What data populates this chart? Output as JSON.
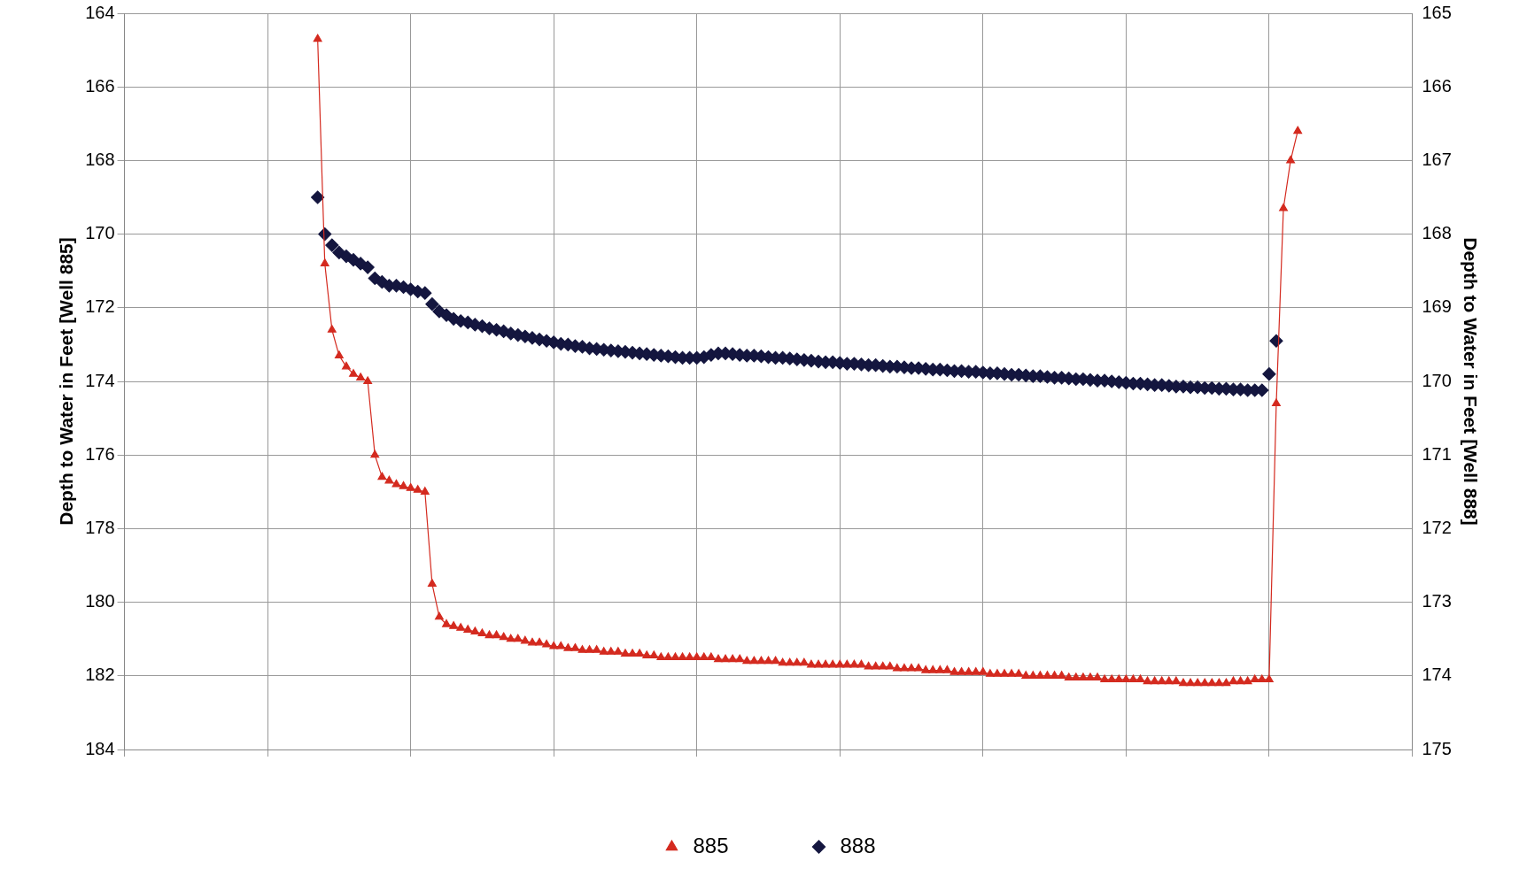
{
  "chart_data": {
    "type": "line",
    "ylabel": "Depth to Water in Feet [Well 885]",
    "y2label": "Depth to Water in Feet [Well 888]",
    "categories": [
      null,
      null,
      null,
      null,
      null,
      null,
      null,
      null,
      null,
      null,
      null,
      null,
      null,
      null,
      null,
      null,
      null,
      null,
      null,
      null,
      null,
      null,
      null,
      null,
      null,
      null,
      null,
      null,
      null,
      null,
      null,
      null,
      null,
      null,
      null,
      null,
      null,
      null,
      null,
      null,
      null,
      null,
      null,
      null,
      null,
      null,
      null,
      null,
      null,
      null,
      null,
      null,
      null,
      null,
      null,
      null,
      null,
      null,
      null,
      null,
      null,
      null,
      null,
      null,
      null,
      null,
      null,
      null,
      null,
      null,
      null,
      null,
      null,
      null,
      null,
      null,
      null,
      null,
      null,
      null,
      null,
      null,
      null,
      null,
      null,
      null,
      null,
      null,
      null,
      null,
      null,
      null,
      null,
      null,
      null,
      null,
      null,
      null,
      null,
      null,
      null,
      null,
      null,
      null,
      null,
      null,
      null,
      null,
      null,
      null,
      null,
      null,
      null,
      null,
      null,
      null,
      null,
      null,
      null,
      null,
      null,
      null,
      null,
      null,
      null,
      null,
      null,
      null,
      null,
      null,
      null,
      null,
      null,
      null,
      null,
      null,
      null,
      null,
      null,
      null,
      null,
      null,
      null,
      null,
      null,
      null,
      null,
      null,
      null,
      null,
      null,
      null,
      null,
      null,
      null,
      null,
      null,
      null,
      null,
      null,
      null,
      null,
      null,
      null,
      null,
      null,
      null,
      null,
      null,
      null,
      null,
      null,
      null,
      null,
      null,
      null,
      null,
      null,
      null,
      null,
      null
    ],
    "series": [
      {
        "name": "885",
        "type": "line",
        "marker": "triangle",
        "line_style": "solid",
        "color": "#d42a1f",
        "values": [
          null,
          null,
          null,
          null,
          null,
          null,
          null,
          null,
          null,
          null,
          null,
          null,
          null,
          null,
          null,
          null,
          null,
          null,
          null,
          null,
          null,
          null,
          null,
          null,
          null,
          null,
          null,
          164.7,
          170.8,
          172.6,
          173.3,
          173.6,
          173.8,
          173.9,
          174.0,
          176.0,
          176.6,
          176.7,
          176.8,
          176.85,
          176.9,
          176.95,
          177.0,
          179.5,
          180.4,
          180.6,
          180.65,
          180.7,
          180.75,
          180.8,
          180.85,
          180.9,
          180.9,
          180.95,
          181.0,
          181.0,
          181.05,
          181.1,
          181.1,
          181.15,
          181.2,
          181.2,
          181.25,
          181.25,
          181.3,
          181.3,
          181.3,
          181.35,
          181.35,
          181.35,
          181.4,
          181.4,
          181.4,
          181.45,
          181.45,
          181.5,
          181.5,
          181.5,
          181.5,
          181.5,
          181.5,
          181.5,
          181.5,
          181.55,
          181.55,
          181.55,
          181.55,
          181.6,
          181.6,
          181.6,
          181.6,
          181.6,
          181.65,
          181.65,
          181.65,
          181.65,
          181.7,
          181.7,
          181.7,
          181.7,
          181.7,
          181.7,
          181.7,
          181.7,
          181.75,
          181.75,
          181.75,
          181.75,
          181.8,
          181.8,
          181.8,
          181.8,
          181.85,
          181.85,
          181.85,
          181.85,
          181.9,
          181.9,
          181.9,
          181.9,
          181.9,
          181.95,
          181.95,
          181.95,
          181.95,
          181.95,
          182.0,
          182.0,
          182.0,
          182.0,
          182.0,
          182.0,
          182.05,
          182.05,
          182.05,
          182.05,
          182.05,
          182.1,
          182.1,
          182.1,
          182.1,
          182.1,
          182.1,
          182.15,
          182.15,
          182.15,
          182.15,
          182.15,
          182.2,
          182.2,
          182.2,
          182.2,
          182.2,
          182.2,
          182.2,
          182.15,
          182.15,
          182.15,
          182.1,
          182.1,
          182.1,
          174.6,
          169.3,
          168.0,
          167.2,
          null,
          null,
          null,
          null,
          null,
          null,
          null,
          null,
          null,
          null,
          null,
          null,
          null,
          null,
          null,
          null
        ]
      },
      {
        "name": "888",
        "type": "scatter",
        "marker": "diamond",
        "axis": "y2",
        "color": "#14163f",
        "values": [
          null,
          null,
          null,
          null,
          null,
          null,
          null,
          null,
          null,
          null,
          null,
          null,
          null,
          null,
          null,
          null,
          null,
          null,
          null,
          null,
          null,
          null,
          null,
          null,
          null,
          null,
          null,
          167.5,
          168.0,
          168.15,
          168.25,
          168.3,
          168.35,
          168.4,
          168.45,
          168.6,
          168.65,
          168.7,
          168.7,
          168.72,
          168.75,
          168.78,
          168.8,
          168.95,
          169.05,
          169.1,
          169.15,
          169.18,
          169.2,
          169.23,
          169.25,
          169.28,
          169.3,
          169.32,
          169.35,
          169.37,
          169.39,
          169.41,
          169.43,
          169.45,
          169.47,
          169.49,
          169.5,
          169.52,
          169.53,
          169.55,
          169.56,
          169.57,
          169.58,
          169.59,
          169.6,
          169.61,
          169.62,
          169.63,
          169.64,
          169.65,
          169.66,
          169.67,
          169.68,
          169.68,
          169.68,
          169.67,
          169.64,
          169.62,
          169.62,
          169.63,
          169.64,
          169.65,
          169.65,
          169.66,
          169.67,
          169.68,
          169.68,
          169.69,
          169.7,
          169.71,
          169.72,
          169.73,
          169.74,
          169.74,
          169.75,
          169.76,
          169.76,
          169.77,
          169.78,
          169.78,
          169.79,
          169.8,
          169.8,
          169.81,
          169.82,
          169.82,
          169.83,
          169.84,
          169.84,
          169.85,
          169.86,
          169.86,
          169.87,
          169.87,
          169.88,
          169.89,
          169.89,
          169.9,
          169.91,
          169.91,
          169.92,
          169.93,
          169.93,
          169.94,
          169.95,
          169.95,
          169.96,
          169.97,
          169.97,
          169.98,
          169.99,
          169.99,
          170.0,
          170.01,
          170.02,
          170.03,
          170.03,
          170.04,
          170.05,
          170.05,
          170.06,
          170.07,
          170.07,
          170.08,
          170.08,
          170.09,
          170.09,
          170.1,
          170.1,
          170.11,
          170.11,
          170.12,
          170.12,
          170.12,
          169.9,
          169.45,
          null,
          null,
          null,
          null,
          null,
          null,
          null,
          null,
          null,
          null,
          null,
          null,
          null,
          null,
          null,
          null,
          null,
          null,
          null
        ]
      }
    ],
    "ylim": [
      184,
      164
    ],
    "yticks": [
      164,
      166,
      168,
      170,
      172,
      174,
      176,
      178,
      180,
      182,
      184
    ],
    "y2lim": [
      175,
      165
    ],
    "y2ticks": [
      165,
      166,
      167,
      168,
      169,
      170,
      171,
      172,
      173,
      174,
      175
    ],
    "tick_labels": "y",
    "grid": true,
    "legend": "bottom"
  }
}
